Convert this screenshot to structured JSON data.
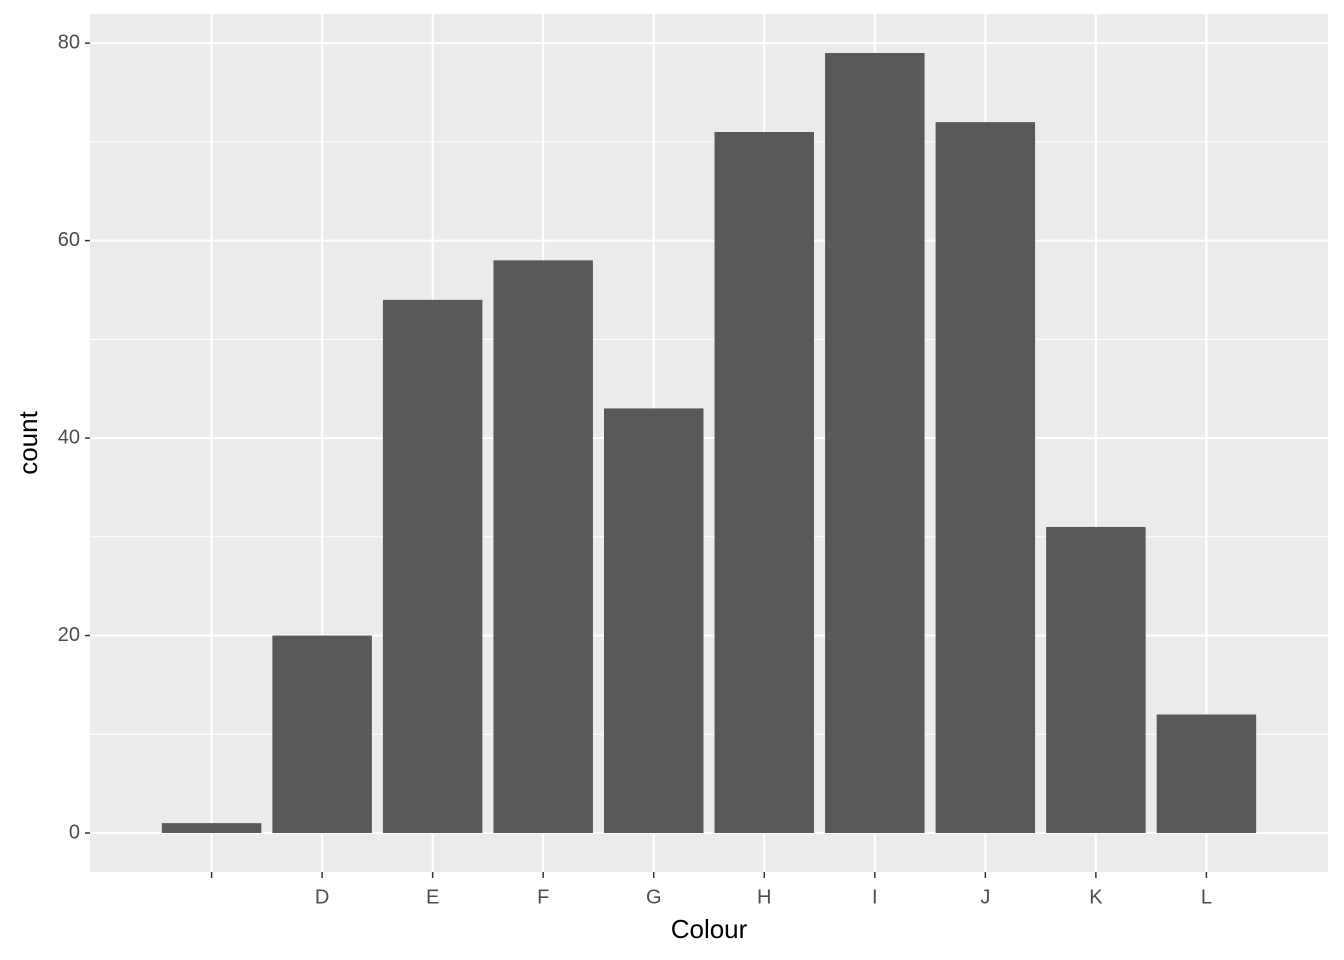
{
  "chart_data": {
    "type": "bar",
    "x_label": "Colour",
    "y_label": "count",
    "categories": [
      null,
      "D",
      "E",
      "F",
      "G",
      "H",
      "I",
      "J",
      "K",
      "L"
    ],
    "values": [
      1,
      20,
      54,
      58,
      43,
      71,
      79,
      72,
      31,
      12
    ],
    "color": "#595959",
    "ylim": [
      -3.95,
      82.95
    ],
    "yticks": [
      0,
      20,
      40,
      60,
      80
    ],
    "y_minor_grid": [
      10,
      30,
      50,
      70
    ],
    "grid": true
  }
}
